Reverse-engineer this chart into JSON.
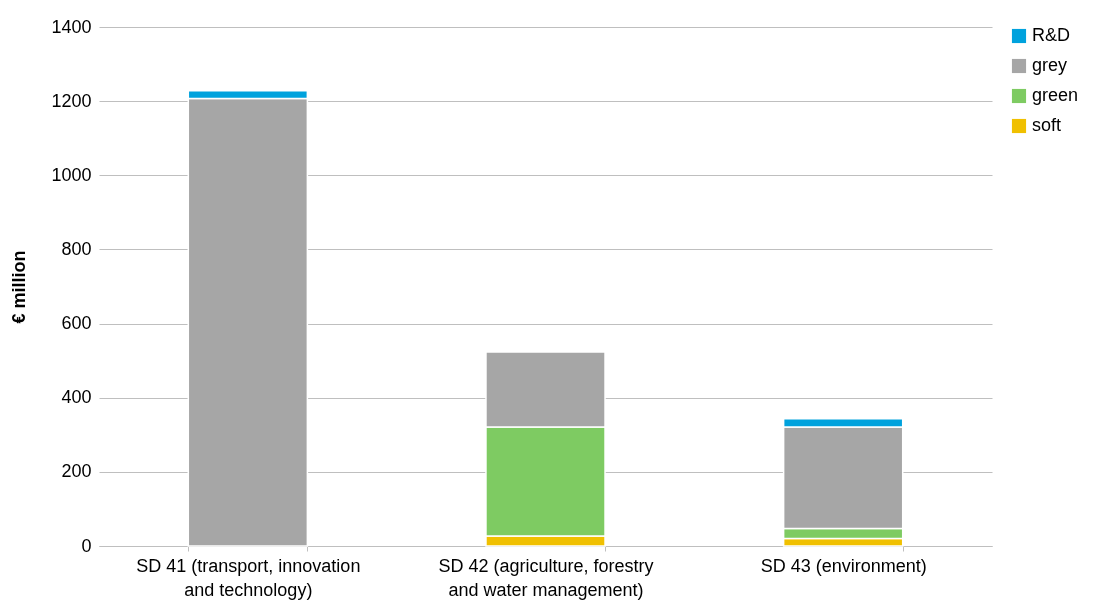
{
  "chart_data": {
    "type": "bar",
    "ylabel": "€ million",
    "categories": [
      "SD 41 (transport, innovation and technology)",
      "SD 42 (agriculture, forestry and water management)",
      "SD 43 (environment)"
    ],
    "series": [
      {
        "name": "soft",
        "color": "#f0c000",
        "values": [
          0,
          27,
          20
        ]
      },
      {
        "name": "green",
        "color": "#7ecb62",
        "values": [
          0,
          294,
          27
        ]
      },
      {
        "name": "grey",
        "color": "#a6a6a6",
        "values": [
          1207,
          202,
          274
        ]
      },
      {
        "name": "R&D",
        "color": "#00a2dd",
        "values": [
          21,
          0,
          22
        ]
      }
    ],
    "stacked": true,
    "ylim": [
      0,
      1400
    ],
    "yticks": [
      0,
      200,
      400,
      600,
      800,
      1000,
      1200,
      1400
    ],
    "grid": "y",
    "legend": "right"
  }
}
